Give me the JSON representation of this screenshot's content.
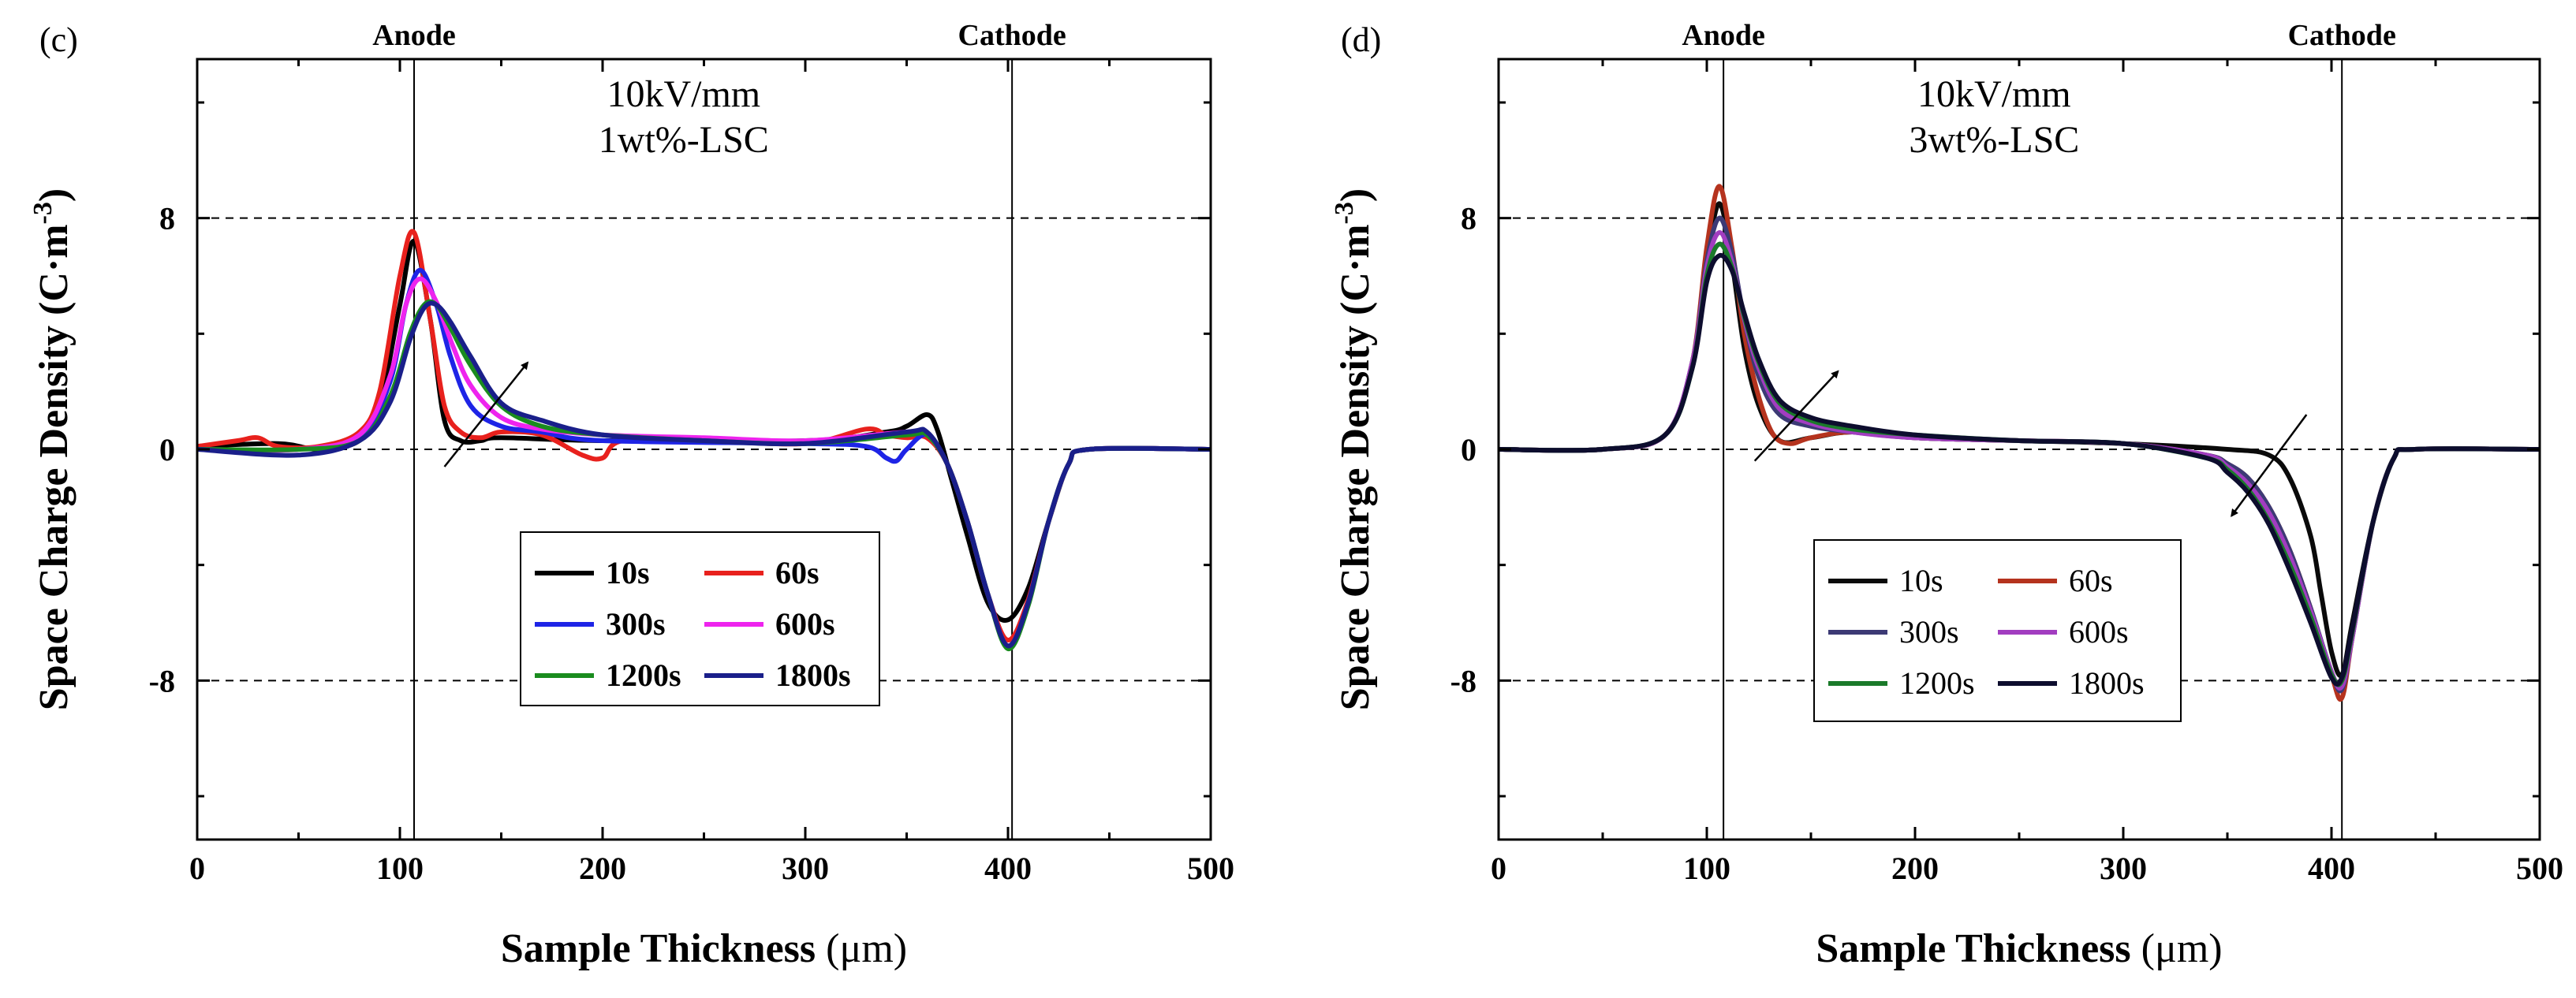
{
  "chart_data": [
    {
      "type": "line",
      "panel_label": "(c)",
      "annotation": [
        "10kV/mm",
        "1wt%-LSC"
      ],
      "xlabel_main": "Sample Thickness ",
      "xlabel_unit": "(μm)",
      "ylabel_main": "Space Charge Density  ",
      "ylabel_unit_base": "(C·m",
      "ylabel_unit_exp": "-3",
      "ylabel_unit_close": ")",
      "xlim": [
        0,
        500
      ],
      "ylim": [
        -13.5,
        13.5
      ],
      "xticks": [
        "0",
        "100",
        "200",
        "300",
        "400",
        "500"
      ],
      "yticks": [
        "8",
        "0",
        "-8"
      ],
      "ytick_values": [
        8,
        0,
        -8
      ],
      "electrodes": [
        {
          "label": "Anode",
          "x": 107
        },
        {
          "label": "Cathode",
          "x": 402
        }
      ],
      "legend": {
        "labels": [
          "10s",
          "60s",
          "300s",
          "600s",
          "1200s",
          "1800s"
        ],
        "bold": true
      },
      "trend_arrows": [
        {
          "x1": 122,
          "y1": -0.6,
          "x2": 163,
          "y2": 3.0
        }
      ],
      "series": [
        {
          "name": "10s",
          "color": "#000000",
          "x": [
            0,
            40,
            60,
            80,
            90,
            100,
            107,
            115,
            122,
            130,
            140,
            150,
            200,
            300,
            340,
            350,
            360,
            365,
            372,
            380,
            390,
            400,
            410,
            420,
            430,
            440,
            500
          ],
          "y": [
            0.1,
            0.2,
            0,
            0.3,
            1.5,
            5,
            7.2,
            4.5,
            1,
            0.3,
            0.3,
            0.4,
            0.3,
            0.3,
            0.6,
            0.8,
            1.2,
            0.7,
            -1,
            -3,
            -5.3,
            -5.9,
            -4.8,
            -2.5,
            -0.5,
            0,
            0
          ]
        },
        {
          "name": "60s",
          "color": "#e8211d",
          "x": [
            0,
            20,
            30,
            40,
            60,
            80,
            90,
            100,
            107,
            115,
            122,
            130,
            140,
            150,
            170,
            190,
            200,
            210,
            250,
            300,
            330,
            340,
            350,
            360,
            370,
            380,
            390,
            400,
            410,
            420,
            430,
            440,
            500
          ],
          "y": [
            0.1,
            0.3,
            0.4,
            0.1,
            0.1,
            0.6,
            2,
            6,
            7.5,
            4.5,
            1.5,
            0.6,
            0.4,
            0.6,
            0.5,
            -0.2,
            -0.3,
            0.3,
            0.3,
            0.2,
            0.7,
            0.5,
            0.4,
            0.4,
            -0.5,
            -2.5,
            -5,
            -6.6,
            -5.2,
            -2.5,
            -0.5,
            0,
            0
          ]
        },
        {
          "name": "300s",
          "color": "#1e24e6",
          "x": [
            0,
            50,
            80,
            95,
            103,
            110,
            118,
            125,
            135,
            150,
            170,
            200,
            300,
            330,
            340,
            345,
            350,
            360,
            370,
            380,
            390,
            400,
            410,
            420,
            430,
            440,
            500
          ],
          "y": [
            0,
            0,
            0.4,
            2.3,
            5,
            6.2,
            5,
            3.2,
            1.5,
            0.8,
            0.6,
            0.3,
            0.2,
            0.1,
            -0.3,
            -0.4,
            0,
            0.5,
            -0.5,
            -2.5,
            -5,
            -6.8,
            -5.3,
            -2.5,
            -0.5,
            0,
            0
          ]
        },
        {
          "name": "600s",
          "color": "#ee24ee",
          "x": [
            0,
            50,
            80,
            95,
            103,
            110,
            118,
            126,
            135,
            150,
            170,
            200,
            250,
            300,
            350,
            360,
            370,
            380,
            390,
            400,
            410,
            420,
            430,
            440,
            500
          ],
          "y": [
            0,
            0,
            0.5,
            2.5,
            5,
            5.9,
            5.1,
            3.6,
            2.2,
            1.1,
            0.7,
            0.5,
            0.4,
            0.3,
            0.6,
            0.5,
            -0.5,
            -2.5,
            -5,
            -6.8,
            -5.3,
            -2.5,
            -0.5,
            0,
            0
          ]
        },
        {
          "name": "1200s",
          "color": "#1a8c1e",
          "x": [
            0,
            50,
            80,
            95,
            105,
            112,
            118,
            125,
            135,
            150,
            170,
            200,
            250,
            300,
            350,
            360,
            370,
            380,
            390,
            400,
            410,
            420,
            430,
            440,
            500
          ],
          "y": [
            0,
            0,
            0.3,
            1.8,
            4,
            5,
            5,
            4.2,
            2.9,
            1.5,
            0.8,
            0.5,
            0.3,
            0.2,
            0.5,
            0.5,
            -0.5,
            -2.5,
            -5,
            -6.9,
            -5.4,
            -2.5,
            -0.5,
            0,
            0
          ]
        },
        {
          "name": "1800s",
          "color": "#1a1f8a",
          "x": [
            0,
            50,
            80,
            95,
            105,
            112,
            118,
            125,
            135,
            150,
            170,
            200,
            250,
            300,
            350,
            360,
            370,
            380,
            390,
            400,
            410,
            420,
            430,
            440,
            500
          ],
          "y": [
            0,
            -0.2,
            0.3,
            1.6,
            3.8,
            4.9,
            5,
            4.4,
            3.2,
            1.6,
            1,
            0.5,
            0.3,
            0.2,
            0.6,
            0.6,
            -0.5,
            -2.5,
            -5,
            -6.8,
            -5.3,
            -2.5,
            -0.5,
            0,
            0
          ]
        }
      ]
    },
    {
      "type": "line",
      "panel_label": "(d)",
      "annotation": [
        "10kV/mm",
        "3wt%-LSC"
      ],
      "xlabel_main": "Sample Thickness ",
      "xlabel_unit": "(μm)",
      "ylabel_main": "Space Charge Density  ",
      "ylabel_unit_base": "(C·m",
      "ylabel_unit_exp": "-3",
      "ylabel_unit_close": ")",
      "xlim": [
        0,
        500
      ],
      "ylim": [
        -13.5,
        13.5
      ],
      "xticks": [
        "0",
        "100",
        "200",
        "300",
        "400",
        "500"
      ],
      "yticks": [
        "8",
        "0",
        "-8"
      ],
      "ytick_values": [
        8,
        0,
        -8
      ],
      "electrodes": [
        {
          "label": "Anode",
          "x": 108
        },
        {
          "label": "Cathode",
          "x": 405
        }
      ],
      "legend": {
        "labels": [
          "10s",
          "60s",
          "300s",
          "600s",
          "1200s",
          "1800s"
        ],
        "bold": false
      },
      "trend_arrows": [
        {
          "x1": 123,
          "y1": -0.4,
          "x2": 163,
          "y2": 2.7
        },
        {
          "x1": 388,
          "y1": 1.2,
          "x2": 352,
          "y2": -2.3
        }
      ],
      "series": [
        {
          "name": "10s",
          "color": "#0a0a0a",
          "x": [
            0,
            50,
            80,
            93,
            100,
            106,
            112,
            118,
            125,
            135,
            150,
            170,
            200,
            250,
            300,
            350,
            370,
            380,
            390,
            395,
            400,
            405,
            410,
            420,
            430,
            440,
            500
          ],
          "y": [
            0,
            0,
            0.5,
            3,
            6.5,
            8.5,
            6.5,
            3.5,
            1.5,
            0.3,
            0.4,
            0.6,
            0.4,
            0.3,
            0.2,
            0,
            -0.2,
            -1,
            -3,
            -5,
            -7,
            -7.8,
            -6,
            -2.5,
            -0.3,
            0,
            0
          ]
        },
        {
          "name": "60s",
          "color": "#b5331e",
          "x": [
            0,
            50,
            80,
            93,
            100,
            106,
            112,
            118,
            125,
            132,
            140,
            150,
            170,
            200,
            250,
            300,
            340,
            350,
            360,
            370,
            380,
            390,
            400,
            405,
            410,
            420,
            430,
            440,
            500
          ],
          "y": [
            0,
            0,
            0.5,
            3,
            7,
            9.1,
            7,
            4,
            1.8,
            0.5,
            0.2,
            0.4,
            0.6,
            0.4,
            0.3,
            0.2,
            -0.2,
            -0.5,
            -1,
            -2,
            -3.5,
            -5.5,
            -7.8,
            -8.6,
            -6.5,
            -2.5,
            -0.3,
            0,
            0
          ]
        },
        {
          "name": "300s",
          "color": "#3c3a75",
          "x": [
            0,
            50,
            80,
            93,
            100,
            106,
            112,
            118,
            125,
            135,
            150,
            170,
            200,
            250,
            300,
            340,
            350,
            360,
            370,
            380,
            390,
            400,
            405,
            410,
            420,
            430,
            440,
            500
          ],
          "y": [
            0,
            0,
            0.5,
            3,
            6.5,
            8,
            6.8,
            4.5,
            2.5,
            1.2,
            0.8,
            0.6,
            0.4,
            0.3,
            0.2,
            -0.2,
            -0.5,
            -1,
            -2,
            -3.5,
            -5.5,
            -7.7,
            -8.3,
            -6.5,
            -2.5,
            -0.3,
            0,
            0
          ]
        },
        {
          "name": "600s",
          "color": "#a23dc0",
          "x": [
            0,
            50,
            80,
            93,
            100,
            106,
            112,
            118,
            125,
            135,
            150,
            170,
            200,
            250,
            300,
            340,
            350,
            360,
            370,
            380,
            390,
            400,
            405,
            410,
            420,
            430,
            440,
            500
          ],
          "y": [
            0,
            0,
            0.5,
            3,
            6.3,
            7.5,
            6.5,
            4.5,
            2.8,
            1.4,
            0.9,
            0.6,
            0.4,
            0.3,
            0.2,
            -0.2,
            -0.6,
            -1.2,
            -2.2,
            -3.7,
            -5.6,
            -7.7,
            -8.2,
            -6.5,
            -2.5,
            -0.3,
            0,
            0
          ]
        },
        {
          "name": "1200s",
          "color": "#1a7a2a",
          "x": [
            0,
            50,
            80,
            93,
            100,
            106,
            112,
            118,
            125,
            135,
            150,
            170,
            200,
            250,
            300,
            340,
            350,
            360,
            370,
            380,
            390,
            400,
            405,
            410,
            420,
            430,
            440,
            500
          ],
          "y": [
            0,
            0,
            0.5,
            2.8,
            6,
            7.1,
            6.3,
            4.6,
            3,
            1.6,
            1,
            0.7,
            0.5,
            0.3,
            0.2,
            -0.3,
            -0.7,
            -1.4,
            -2.5,
            -4,
            -5.8,
            -7.8,
            -8,
            -6.3,
            -2.5,
            -0.3,
            0,
            0
          ]
        },
        {
          "name": "1800s",
          "color": "#0d0d2e",
          "x": [
            0,
            50,
            80,
            93,
            100,
            106,
            112,
            118,
            125,
            135,
            150,
            170,
            200,
            250,
            300,
            340,
            350,
            360,
            370,
            380,
            390,
            400,
            405,
            410,
            420,
            430,
            440,
            500
          ],
          "y": [
            0,
            0,
            0.5,
            2.8,
            5.8,
            6.7,
            6.2,
            4.7,
            3.1,
            1.7,
            1.1,
            0.8,
            0.5,
            0.3,
            0.2,
            -0.3,
            -0.8,
            -1.5,
            -2.6,
            -4.2,
            -6,
            -7.9,
            -7.9,
            -6.2,
            -2.5,
            -0.3,
            0,
            0
          ]
        }
      ]
    }
  ]
}
